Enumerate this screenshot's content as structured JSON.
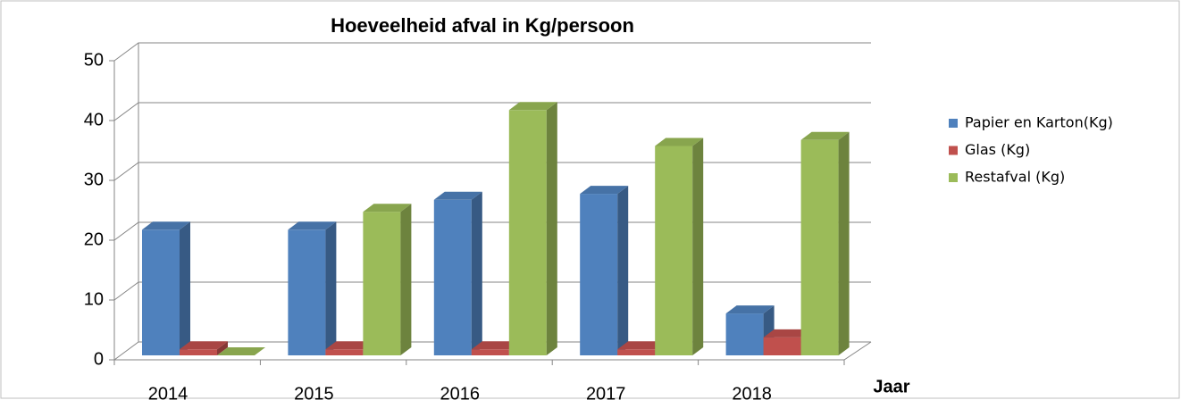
{
  "chart_data": {
    "type": "bar3d",
    "title": "Hoeveelheid afval in Kg/persoon",
    "x_label": "Jaar",
    "categories": [
      "2014",
      "2015",
      "2016",
      "2017",
      "2018"
    ],
    "series": [
      {
        "name": "Papier en Karton(Kg)",
        "color": "#4f81bd",
        "values": [
          21,
          21,
          26,
          27,
          7
        ]
      },
      {
        "name": "Glas (Kg)",
        "color": "#c0504d",
        "values": [
          1,
          1,
          1,
          1,
          3
        ]
      },
      {
        "name": "Restafval (Kg)",
        "color": "#9bbb59",
        "values": [
          0,
          24,
          41,
          35,
          36
        ]
      }
    ],
    "ylim": [
      0,
      50
    ],
    "yticks": [
      0,
      10,
      20,
      30,
      40,
      50
    ],
    "grid": true,
    "legend": "right"
  }
}
